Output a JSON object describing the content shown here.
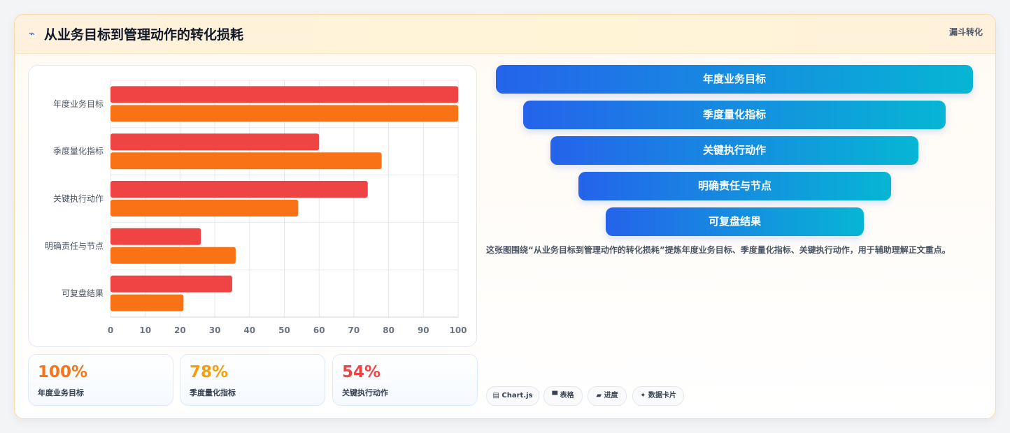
{
  "header": {
    "icon": "trend-icon",
    "icon_glyph": "⌁",
    "title": "从业务目标到管理动作的转化损耗",
    "tag": "漏斗转化"
  },
  "colors": {
    "series_red": "#ef4444",
    "series_orange": "#f97316",
    "funnel_start": "#2563eb",
    "funnel_end": "#06b6d4",
    "stat_1": "#f97316",
    "stat_2": "#f59e0b",
    "stat_3": "#ef4444"
  },
  "chart_data": {
    "type": "bar",
    "orientation": "horizontal",
    "categories": [
      "年度业务目标",
      "季度量化指标",
      "关键执行动作",
      "明确责任与节点",
      "可复盘结果"
    ],
    "series": [
      {
        "values": [
          100,
          60,
          74,
          26,
          35
        ],
        "color": "#ef4444"
      },
      {
        "values": [
          100,
          78,
          54,
          36,
          21
        ],
        "color": "#f97316"
      }
    ],
    "xlim": [
      0,
      100
    ],
    "xticks": [
      0,
      10,
      20,
      30,
      40,
      50,
      60,
      70,
      80,
      90,
      100
    ],
    "grid": true,
    "title": "",
    "xlabel": "",
    "ylabel": ""
  },
  "stats": [
    {
      "value": "100%",
      "label": "年度业务目标"
    },
    {
      "value": "78%",
      "label": "季度量化指标"
    },
    {
      "value": "54%",
      "label": "关键执行动作"
    }
  ],
  "funnel": [
    "年度业务目标",
    "季度量化指标",
    "关键执行动作",
    "明确责任与节点",
    "可复盘结果"
  ],
  "description": "这张图围绕“从业务目标到管理动作的转化损耗”提炼年度业务目标、季度量化指标、关键执行动作，用于辅助理解正文重点。",
  "chips": [
    {
      "icon": "chart-icon",
      "label": "▤ Chart.js"
    },
    {
      "icon": "table-icon",
      "label": "▀ 表格"
    },
    {
      "icon": "progress-icon",
      "label": "▰ 进度"
    },
    {
      "icon": "card-icon",
      "label": "✦ 数据卡片"
    }
  ]
}
